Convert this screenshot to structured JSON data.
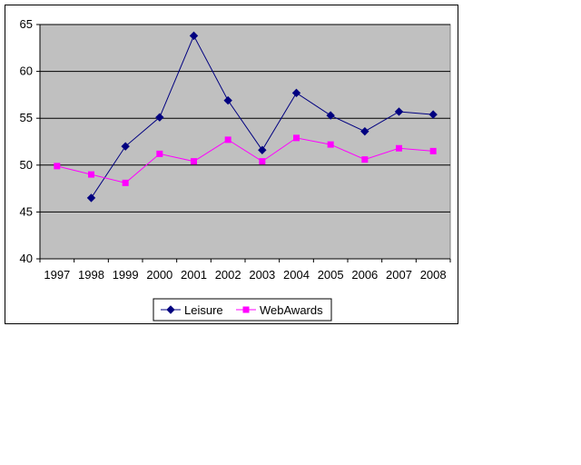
{
  "chart_data": {
    "type": "line",
    "categories": [
      "1997",
      "1998",
      "1999",
      "2000",
      "2001",
      "2002",
      "2003",
      "2004",
      "2005",
      "2006",
      "2007",
      "2008"
    ],
    "series": [
      {
        "name": "Leisure",
        "color": "#000080",
        "marker": "diamond",
        "values": [
          null,
          46.5,
          52.0,
          55.1,
          63.8,
          56.9,
          51.6,
          57.7,
          55.3,
          53.6,
          55.7,
          55.4
        ]
      },
      {
        "name": "WebAwards",
        "color": "#FF00FF",
        "marker": "square",
        "values": [
          49.9,
          49.0,
          48.1,
          51.2,
          50.4,
          52.7,
          50.4,
          52.9,
          52.2,
          50.6,
          51.8,
          51.5
        ]
      }
    ],
    "ylim": [
      40,
      65
    ],
    "yticks": [
      40,
      45,
      50,
      55,
      60,
      65
    ],
    "grid": true,
    "plot_background": "#C0C0C0",
    "legend_position": "bottom"
  }
}
